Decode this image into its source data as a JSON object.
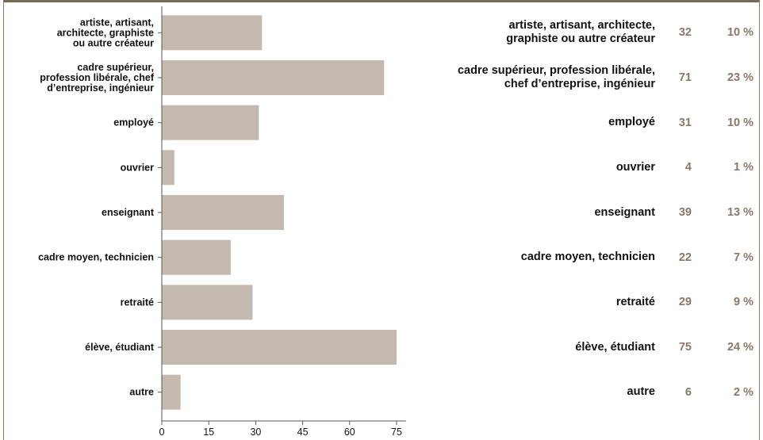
{
  "chart_data": {
    "type": "bar",
    "orientation": "horizontal",
    "categories": [
      [
        "artiste, artisant,",
        "architecte, graphiste",
        "ou autre créateur"
      ],
      [
        "cadre supérieur,",
        "profession libérale, chef",
        "d’entreprise, ingénieur"
      ],
      [
        "employé"
      ],
      [
        "ouvrier"
      ],
      [
        "enseignant"
      ],
      [
        "cadre moyen, technicien"
      ],
      [
        "retraité"
      ],
      [
        "élève, étudiant"
      ],
      [
        "autre"
      ]
    ],
    "values": [
      32,
      71,
      31,
      4,
      39,
      22,
      29,
      75,
      6
    ],
    "xticks": [
      "0",
      "15",
      "30",
      "45",
      "60",
      "75"
    ],
    "xlim": [
      0,
      78
    ],
    "bar_color": "#c4b9af",
    "grid": false
  },
  "table": {
    "rows": [
      {
        "label": [
          "artiste, artisant, architecte,",
          "graphiste ou autre créateur"
        ],
        "count": "32",
        "pct": "10 %"
      },
      {
        "label": [
          "cadre supérieur, profession libérale,",
          "chef d’entreprise, ingénieur"
        ],
        "count": "71",
        "pct": "23 %"
      },
      {
        "label": [
          "employé"
        ],
        "count": "31",
        "pct": "10 %"
      },
      {
        "label": [
          "ouvrier"
        ],
        "count": "4",
        "pct": "1 %"
      },
      {
        "label": [
          "enseignant"
        ],
        "count": "39",
        "pct": "13 %"
      },
      {
        "label": [
          "cadre moyen, technicien"
        ],
        "count": "22",
        "pct": "7 %"
      },
      {
        "label": [
          "retraité"
        ],
        "count": "29",
        "pct": "9 %"
      },
      {
        "label": [
          "élève, étudiant"
        ],
        "count": "75",
        "pct": "24 %"
      },
      {
        "label": [
          "autre"
        ],
        "count": "6",
        "pct": "2 %"
      }
    ],
    "accent_color": "#8a7866"
  }
}
